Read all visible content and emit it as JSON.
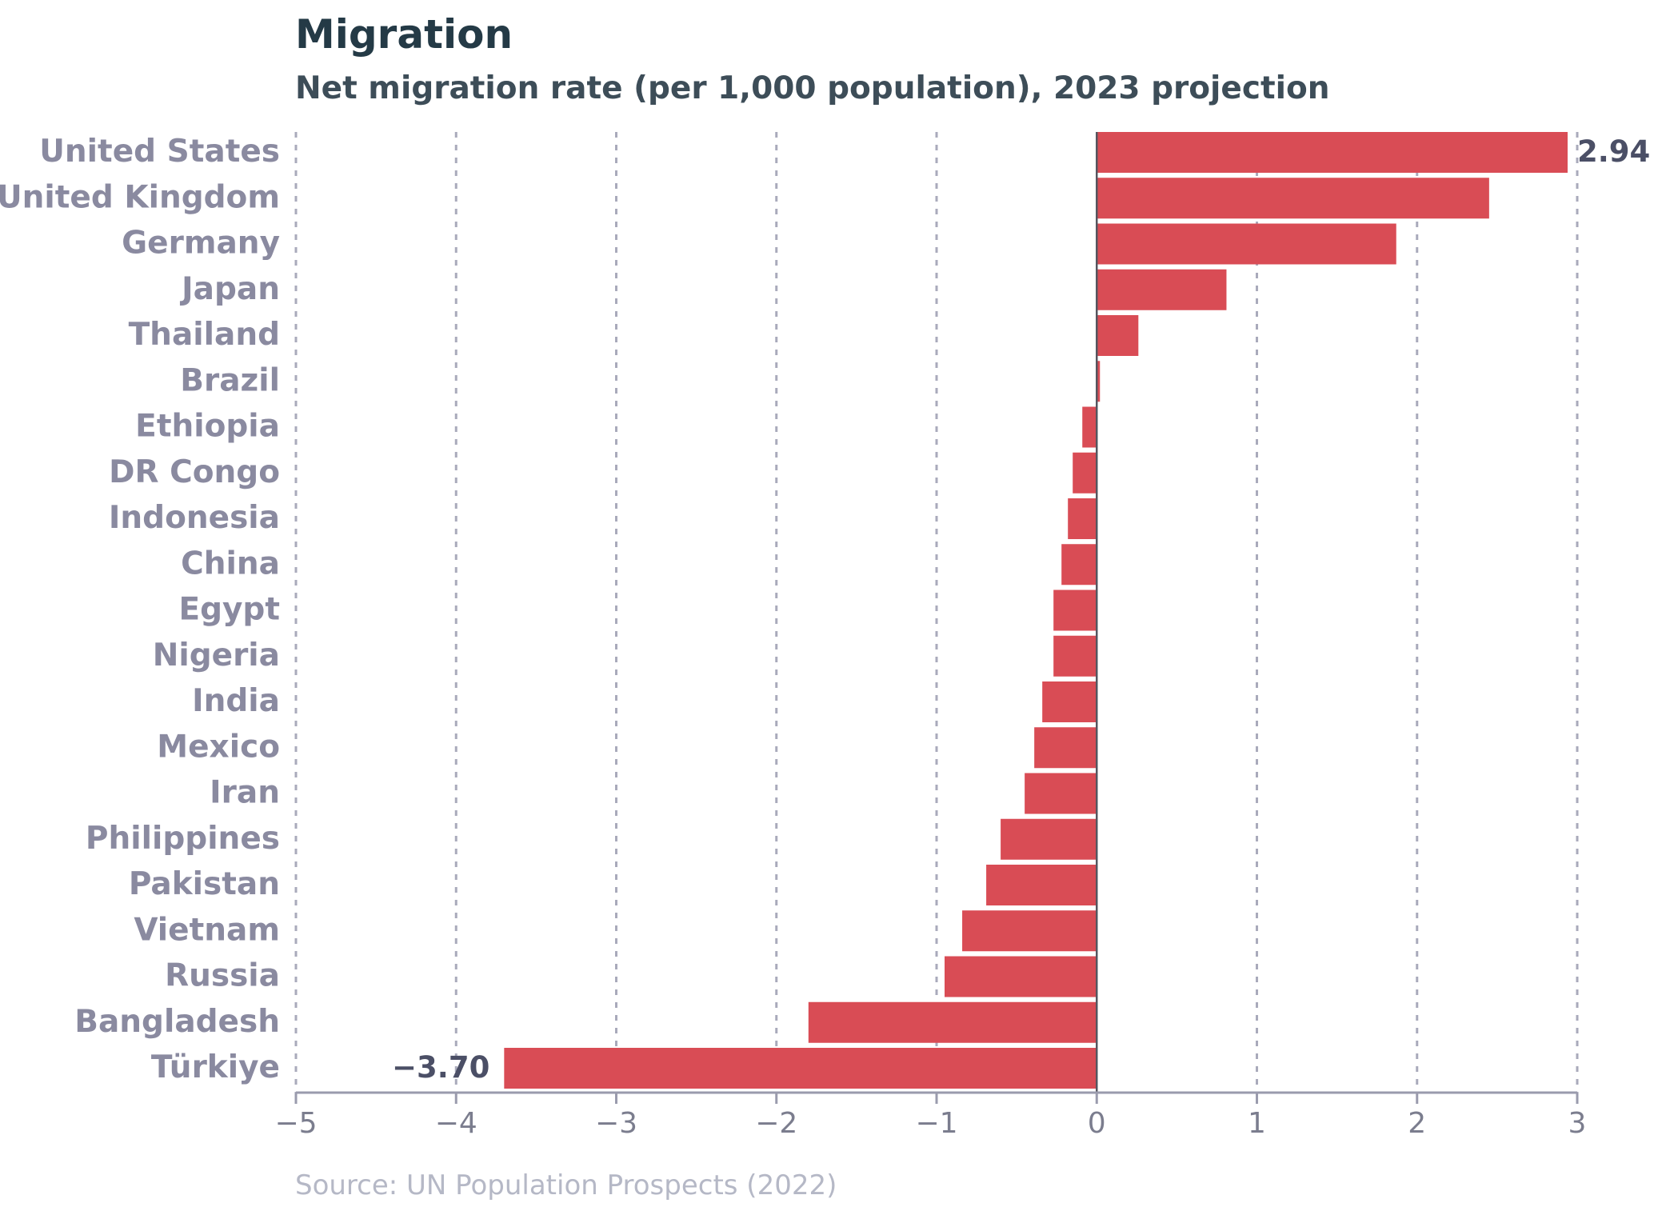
{
  "chart_data": {
    "type": "bar",
    "orientation": "horizontal",
    "title": "Migration",
    "subtitle": "Net migration rate (per 1,000 population), 2023 projection",
    "source": "Source: UN Population Prospects (2022)",
    "xlabel": "",
    "ylabel": "",
    "xlim": [
      -5,
      3
    ],
    "xticks": [
      -5,
      -4,
      -3,
      -2,
      -1,
      0,
      1,
      2,
      3
    ],
    "xtick_labels": [
      "−5",
      "−4",
      "−3",
      "−2",
      "−1",
      "0",
      "1",
      "2",
      "3"
    ],
    "grid": "vertical-dashed",
    "categories": [
      "United States",
      "United Kingdom",
      "Germany",
      "Japan",
      "Thailand",
      "Brazil",
      "Ethiopia",
      "DR Congo",
      "Indonesia",
      "China",
      "Egypt",
      "Nigeria",
      "India",
      "Mexico",
      "Iran",
      "Philippines",
      "Pakistan",
      "Vietnam",
      "Russia",
      "Bangladesh",
      "Türkiye"
    ],
    "values": [
      2.94,
      2.45,
      1.87,
      0.81,
      0.26,
      0.02,
      -0.09,
      -0.15,
      -0.18,
      -0.22,
      -0.27,
      -0.27,
      -0.34,
      -0.39,
      -0.45,
      -0.6,
      -0.69,
      -0.84,
      -0.95,
      -1.8,
      -3.7
    ],
    "data_labels": [
      {
        "category": "United States",
        "text": "2.94"
      },
      {
        "category": "Türkiye",
        "text": "−3.70"
      }
    ],
    "colors": {
      "bar": "#d94c55",
      "zero_line": "#55555f",
      "grid": "#a9aabb",
      "axis": "#9a9bad",
      "category_label": "#8a8aa0",
      "tick_label": "#7b7d8e",
      "data_label": "#4b4f66"
    }
  }
}
